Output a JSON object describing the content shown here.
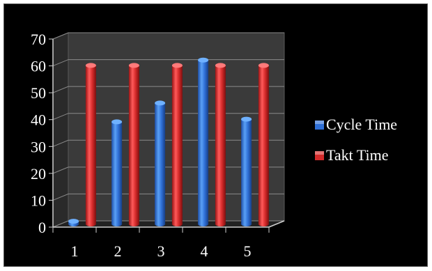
{
  "chart_data": {
    "type": "bar",
    "style": "3d-cylinder",
    "categories": [
      "1",
      "2",
      "3",
      "4",
      "5"
    ],
    "series": [
      {
        "name": "Cycle Time",
        "values": [
          1,
          38,
          45,
          61,
          39
        ],
        "color": "#2f6fd6"
      },
      {
        "name": "Takt Time",
        "values": [
          59,
          59,
          59,
          59,
          59
        ],
        "color": "#d42a2a"
      }
    ],
    "ylim": [
      0,
      70
    ],
    "yticks": [
      "0",
      "10",
      "20",
      "30",
      "40",
      "50",
      "60",
      "70"
    ],
    "grid": true,
    "legend": "right",
    "title": "",
    "xlabel": "",
    "ylabel": "",
    "background": "#000000",
    "plot_wall": "#3a3a3a"
  }
}
